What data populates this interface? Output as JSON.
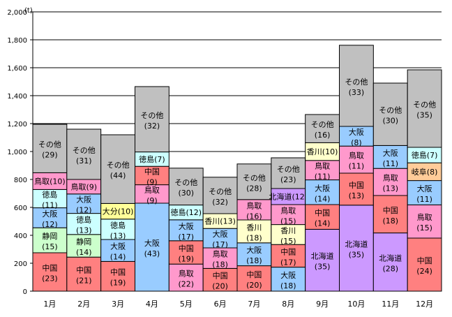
{
  "chart_data": {
    "type": "bar",
    "stacked": true,
    "title": "",
    "xlabel": "",
    "ylabel": "",
    "unit_label": "(t)",
    "ylim": [
      0,
      2000
    ],
    "yticks": [
      0,
      200,
      400,
      600,
      800,
      1000,
      1200,
      1400,
      1600,
      1800,
      2000
    ],
    "ytick_labels": [
      "0",
      "200",
      "400",
      "600",
      "800",
      "1,000",
      "1,200",
      "1,400",
      "1,600",
      "1,800",
      "2,000"
    ],
    "grid": true,
    "categories": [
      "1月",
      "2月",
      "3月",
      "4月",
      "5月",
      "6月",
      "7月",
      "8月",
      "9月",
      "10月",
      "11月",
      "12月"
    ],
    "colors": {
      "中国": "#ff8080",
      "静岡": "#ccffcc",
      "大阪": "#99ccff",
      "徳島": "#ccffff",
      "鳥取": "#ff99cc",
      "その他": "#c0c0c0",
      "大分": "#ffff99",
      "香川": "#ffffcc",
      "北海道": "#cc99ff",
      "岐阜": "#ffcc99"
    },
    "stacks": [
      [
        {
          "name": "中国",
          "value": 275,
          "pct": 23
        },
        {
          "name": "静岡",
          "value": 179,
          "pct": 15
        },
        {
          "name": "大阪",
          "value": 143,
          "pct": 12
        },
        {
          "name": "徳島",
          "value": 131,
          "pct": 11
        },
        {
          "name": "鳥取",
          "value": 120,
          "pct": 10
        },
        {
          "name": "その他",
          "value": 347,
          "pct": 29
        }
      ],
      [
        {
          "name": "中国",
          "value": 244,
          "pct": 21
        },
        {
          "name": "静岡",
          "value": 162,
          "pct": 14
        },
        {
          "name": "徳島",
          "value": 151,
          "pct": 13
        },
        {
          "name": "大阪",
          "value": 139,
          "pct": 12
        },
        {
          "name": "鳥取",
          "value": 104,
          "pct": 9
        },
        {
          "name": "その他",
          "value": 360,
          "pct": 31
        }
      ],
      [
        {
          "name": "中国",
          "value": 213,
          "pct": 19
        },
        {
          "name": "大阪",
          "value": 157,
          "pct": 14
        },
        {
          "name": "徳島",
          "value": 146,
          "pct": 13
        },
        {
          "name": "大分",
          "value": 112,
          "pct": 10
        },
        {
          "name": "その他",
          "value": 492,
          "pct": 44
        }
      ],
      [
        {
          "name": "大阪",
          "value": 630,
          "pct": 43
        },
        {
          "name": "鳥取",
          "value": 132,
          "pct": 9
        },
        {
          "name": "中国",
          "value": 132,
          "pct": 9
        },
        {
          "name": "徳島",
          "value": 103,
          "pct": 7
        },
        {
          "name": "その他",
          "value": 468,
          "pct": 32
        }
      ],
      [
        {
          "name": "鳥取",
          "value": 194,
          "pct": 22
        },
        {
          "name": "中国",
          "value": 167,
          "pct": 19
        },
        {
          "name": "大阪",
          "value": 150,
          "pct": 17
        },
        {
          "name": "徳島",
          "value": 106,
          "pct": 12
        },
        {
          "name": "その他",
          "value": 264,
          "pct": 30
        }
      ],
      [
        {
          "name": "中国",
          "value": 163,
          "pct": 20
        },
        {
          "name": "鳥取",
          "value": 147,
          "pct": 18
        },
        {
          "name": "大阪",
          "value": 139,
          "pct": 17
        },
        {
          "name": "香川",
          "value": 106,
          "pct": 13
        },
        {
          "name": "その他",
          "value": 261,
          "pct": 32
        }
      ],
      [
        {
          "name": "中国",
          "value": 182,
          "pct": 20
        },
        {
          "name": "大阪",
          "value": 164,
          "pct": 18
        },
        {
          "name": "香川",
          "value": 164,
          "pct": 18
        },
        {
          "name": "鳥取",
          "value": 146,
          "pct": 16
        },
        {
          "name": "その他",
          "value": 255,
          "pct": 28
        }
      ],
      [
        {
          "name": "大阪",
          "value": 172,
          "pct": 18
        },
        {
          "name": "中国",
          "value": 162,
          "pct": 17
        },
        {
          "name": "香川",
          "value": 143,
          "pct": 15
        },
        {
          "name": "鳥取",
          "value": 143,
          "pct": 15
        },
        {
          "name": "北海道",
          "value": 115,
          "pct": 12
        },
        {
          "name": "その他",
          "value": 220,
          "pct": 23
        }
      ],
      [
        {
          "name": "北海道",
          "value": 443,
          "pct": 35
        },
        {
          "name": "中国",
          "value": 177,
          "pct": 14
        },
        {
          "name": "大阪",
          "value": 177,
          "pct": 14
        },
        {
          "name": "鳥取",
          "value": 139,
          "pct": 11
        },
        {
          "name": "香川",
          "value": 127,
          "pct": 10
        },
        {
          "name": "その他",
          "value": 202,
          "pct": 16
        }
      ],
      [
        {
          "name": "北海道",
          "value": 616,
          "pct": 35
        },
        {
          "name": "中国",
          "value": 229,
          "pct": 13
        },
        {
          "name": "鳥取",
          "value": 194,
          "pct": 11
        },
        {
          "name": "大阪",
          "value": 141,
          "pct": 8
        },
        {
          "name": "その他",
          "value": 581,
          "pct": 33
        }
      ],
      [
        {
          "name": "北海道",
          "value": 417,
          "pct": 28
        },
        {
          "name": "中国",
          "value": 268,
          "pct": 18
        },
        {
          "name": "鳥取",
          "value": 194,
          "pct": 13
        },
        {
          "name": "大阪",
          "value": 164,
          "pct": 11
        },
        {
          "name": "その他",
          "value": 447,
          "pct": 30
        }
      ],
      [
        {
          "name": "中国",
          "value": 380,
          "pct": 24
        },
        {
          "name": "鳥取",
          "value": 238,
          "pct": 15
        },
        {
          "name": "大阪",
          "value": 174,
          "pct": 11
        },
        {
          "name": "岐阜",
          "value": 127,
          "pct": 8
        },
        {
          "name": "徳島",
          "value": 111,
          "pct": 7
        },
        {
          "name": "その他",
          "value": 555,
          "pct": 35
        }
      ]
    ]
  }
}
